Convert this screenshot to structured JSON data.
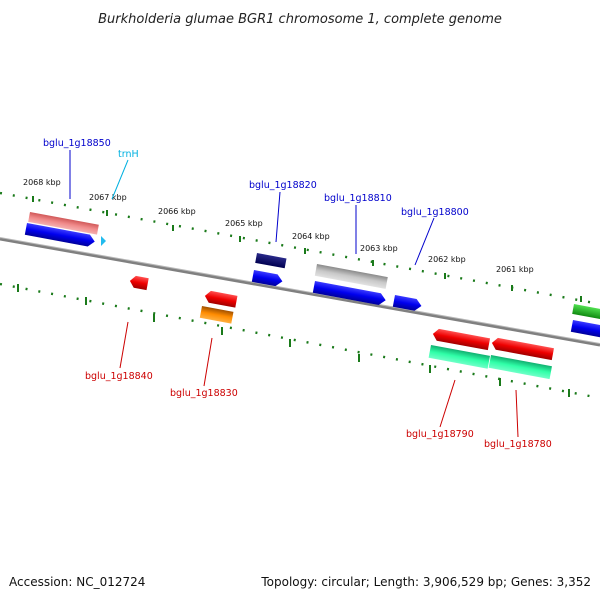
{
  "title": "Burkholderia glumae BGR1 chromosome 1, complete genome",
  "footer": {
    "accession": "Accession: NC_012724",
    "summary": "Topology: circular; Length: 3,906,529 bp; Genes: 3,352"
  },
  "scale": {
    "ticks": [
      "2068 kbp",
      "2067 kbp",
      "2066 kbp",
      "2065 kbp",
      "2064 kbp",
      "2063 kbp",
      "2062 kbp",
      "2061 kbp"
    ]
  },
  "genes": {
    "bglu_1g18850": "bglu_1g18850",
    "trnH": "trnH",
    "bglu_1g18820": "bglu_1g18820",
    "bglu_1g18810": "bglu_1g18810",
    "bglu_1g18800": "bglu_1g18800",
    "bglu_1g18840": "bglu_1g18840",
    "bglu_1g18830": "bglu_1g18830",
    "bglu_1g18790": "bglu_1g18790",
    "bglu_1g18780": "bglu_1g18780"
  },
  "colors": {
    "forward_label": "#0000cc",
    "reverse_label": "#cc0000",
    "trna_label": "#00b0e0",
    "tick": "#1a7a1a",
    "backbone": "#808080"
  }
}
